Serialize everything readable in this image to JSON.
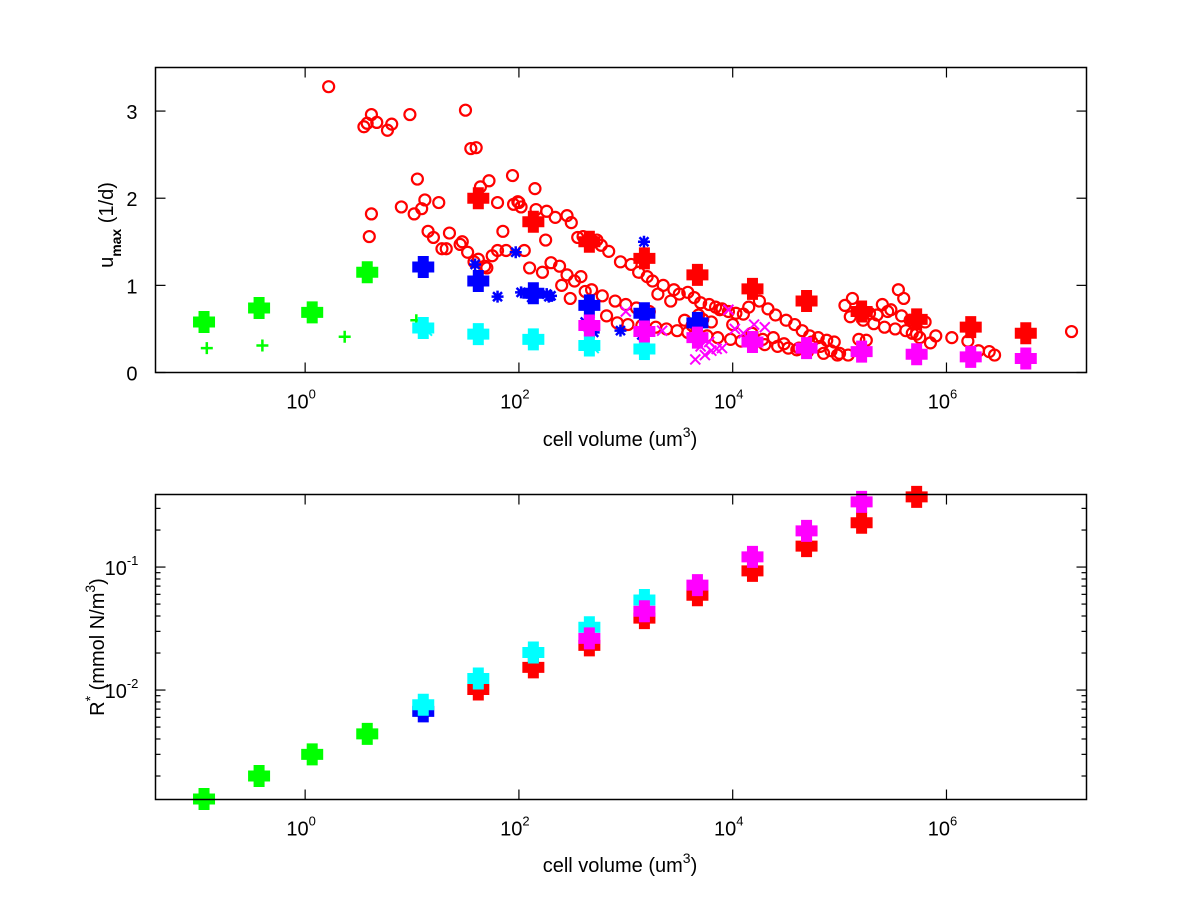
{
  "chart_data": [
    {
      "type": "scatter",
      "panel": "top",
      "title": "",
      "xlabel": "cell volume (um3)",
      "xlabel_parts": {
        "main": "cell volume (um",
        "sup": "3",
        "end": ")"
      },
      "ylabel": "u_max (1/d)",
      "ylabel_parts": {
        "main": "u",
        "sub": "max",
        "end": " (1/d)"
      },
      "xscale": "log",
      "yscale": "linear",
      "xlim_log10": [
        -1.4,
        7.31
      ],
      "ylim": [
        0,
        3.5
      ],
      "xticks": [
        {
          "exp": "0",
          "value": 1
        },
        {
          "exp": "2",
          "value": 100
        },
        {
          "exp": "4",
          "value": 10000
        },
        {
          "exp": "6",
          "value": 1000000
        }
      ],
      "yticks": [
        0,
        1,
        2,
        3
      ],
      "grid": false,
      "legend": "none",
      "series": [
        {
          "name": "observations-red",
          "color": "#ff0000",
          "marker": "circle",
          "x_log10": [
            0.22,
            0.55,
            0.58,
            0.62,
            0.67,
            0.77,
            0.81,
            0.98,
            1.5,
            1.55,
            1.6,
            1.64,
            1.72,
            1.8,
            1.94,
            1.99,
            2.02,
            2.15,
            2.16,
            2.26,
            2.34,
            2.45,
            2.49,
            2.55,
            2.6,
            2.7,
            2.73,
            2.77,
            2.84,
            2.95,
            3.05,
            3.12,
            3.2,
            3.25,
            3.35,
            3.45,
            3.5,
            3.58,
            3.64,
            3.7,
            3.78,
            3.84,
            3.9,
            3.96,
            4.03,
            4.1,
            4.15,
            4.25,
            4.33,
            4.4,
            4.5,
            4.58,
            4.65,
            4.72,
            4.8,
            4.88,
            4.95,
            5.05,
            5.12,
            5.2,
            5.28,
            5.35,
            5.45,
            5.55,
            5.6,
            5.68,
            5.75,
            5.85,
            6.3,
            6.45,
            7.17,
            0.62,
            0.6,
            0.9,
            1.05,
            1.12,
            1.35,
            1.2,
            1.28,
            1.47,
            1.58,
            1.7,
            1.8,
            1.85,
            1.95,
            2.05,
            2.25,
            2.38,
            2.45,
            2.52,
            2.62,
            2.78,
            2.9,
            3.0,
            3.1,
            3.22,
            3.3,
            3.42,
            3.55,
            3.62,
            3.68,
            3.72,
            3.8,
            3.88,
            4.0,
            4.18,
            4.28,
            4.38,
            4.48,
            4.62,
            4.74,
            4.82,
            4.92,
            5.0,
            5.08,
            5.18,
            5.25,
            5.4,
            5.48,
            5.58,
            5.66,
            5.8,
            6.4,
            1.02,
            1.09,
            1.15,
            1.25,
            1.32,
            1.45,
            1.52,
            1.62,
            1.68,
            1.75,
            1.88,
            2.0,
            2.1,
            2.22,
            2.3,
            2.4,
            2.48,
            2.58,
            2.68,
            2.82,
            2.92,
            3.02,
            3.15,
            3.28,
            3.38,
            3.48,
            3.58,
            3.65,
            3.76,
            3.86,
            3.98,
            4.08,
            4.2,
            4.3,
            4.42,
            4.52,
            4.6,
            4.7,
            4.85,
            4.98,
            5.1,
            5.22,
            5.32,
            5.42,
            5.52,
            5.62,
            5.72,
            5.9,
            6.05,
            6.2
          ],
          "y": [
            3.28,
            2.82,
            2.86,
            2.96,
            2.87,
            2.78,
            2.85,
            2.96,
            3.01,
            2.57,
            2.58,
            2.13,
            2.2,
            1.95,
            2.26,
            1.96,
            1.9,
            2.11,
            1.87,
            1.85,
            1.78,
            1.8,
            1.72,
            1.55,
            1.56,
            1.5,
            1.52,
            1.46,
            1.39,
            1.27,
            1.24,
            1.15,
            1.1,
            1.05,
            1.0,
            0.95,
            0.9,
            0.92,
            0.86,
            0.8,
            0.78,
            0.75,
            0.73,
            0.7,
            0.68,
            0.67,
            0.75,
            0.82,
            0.73,
            0.66,
            0.6,
            0.55,
            0.48,
            0.42,
            0.4,
            0.37,
            0.35,
            0.77,
            0.85,
            0.72,
            0.68,
            0.66,
            0.7,
            0.95,
            0.85,
            0.45,
            0.4,
            0.34,
            0.25,
            0.2,
            0.47,
            1.82,
            1.56,
            1.9,
            2.22,
            1.98,
            1.6,
            1.55,
            1.42,
            1.5,
            1.27,
            1.2,
            1.4,
            1.62,
            1.93,
            1.4,
            1.52,
            1.22,
            1.12,
            1.05,
            0.93,
            0.88,
            0.82,
            0.78,
            0.74,
            0.7,
            0.9,
            0.82,
            0.6,
            0.54,
            0.66,
            0.61,
            0.58,
            0.72,
            0.55,
            0.45,
            0.38,
            0.4,
            0.33,
            0.28,
            0.35,
            0.3,
            0.25,
            0.22,
            0.2,
            0.38,
            0.37,
            0.78,
            0.72,
            0.65,
            0.6,
            0.58,
            0.24,
            1.82,
            1.88,
            1.62,
            1.95,
            1.42,
            1.47,
            1.38,
            1.3,
            1.22,
            1.34,
            1.4,
            1.95,
            1.2,
            1.15,
            1.26,
            1.0,
            0.85,
            1.1,
            0.95,
            0.65,
            0.57,
            0.55,
            0.54,
            0.52,
            0.5,
            0.48,
            0.46,
            0.44,
            0.42,
            0.4,
            0.38,
            0.36,
            0.34,
            0.32,
            0.3,
            0.28,
            0.26,
            0.24,
            0.22,
            0.2,
            0.64,
            0.6,
            0.56,
            0.52,
            0.5,
            0.48,
            0.44,
            0.42,
            0.4,
            0.36
          ]
        },
        {
          "name": "observations-blue",
          "color": "#0000ff",
          "marker": "asterisk",
          "x_log10": [
            1.59,
            1.97,
            2.02,
            2.28,
            2.12,
            2.3,
            2.62,
            2.65,
            2.7,
            3.17,
            1.8,
            2.26,
            2.95,
            3.15
          ],
          "y": [
            1.24,
            1.38,
            0.92,
            0.87,
            0.86,
            0.88,
            0.58,
            0.52,
            0.46,
            1.5,
            0.87,
            0.9,
            0.48,
            0.43
          ]
        },
        {
          "name": "observations-magenta",
          "color": "#ff00ff",
          "marker": "x",
          "x_log10": [
            3.0,
            2.66,
            3.34,
            3.65,
            3.74,
            3.8,
            3.85,
            3.9,
            3.96,
            4.02,
            4.1,
            4.2,
            4.3,
            3.7,
            3.78
          ],
          "y": [
            0.7,
            0.68,
            0.48,
            0.15,
            0.2,
            0.25,
            0.27,
            0.28,
            0.72,
            0.5,
            0.45,
            0.55,
            0.52,
            0.3,
            0.35
          ]
        },
        {
          "name": "observations-green",
          "color": "#00ff00",
          "marker": "plus",
          "x_log10": [
            -0.92,
            -0.4,
            0.37,
            1.04
          ],
          "y": [
            0.28,
            0.31,
            0.41,
            0.6
          ]
        },
        {
          "name": "observations-cyan",
          "color": "#00ffff",
          "marker": "x",
          "x_log10": [
            1.14,
            2.7
          ],
          "y": [
            0.48,
            0.28
          ]
        },
        {
          "name": "model-green",
          "color": "#00ff00",
          "marker": "bigplus",
          "x_log10": [
            -0.946,
            -0.431,
            0.066,
            0.581
          ],
          "y": [
            0.58,
            0.74,
            0.69,
            1.15
          ]
        },
        {
          "name": "model-blue",
          "color": "#0000ff",
          "marker": "bigplus",
          "x_log10": [
            1.105,
            1.62,
            2.135,
            2.659,
            3.174,
            3.67
          ],
          "y": [
            1.21,
            1.05,
            0.91,
            0.77,
            0.68,
            0.57
          ]
        },
        {
          "name": "model-cyan",
          "color": "#00ffff",
          "marker": "bigplus",
          "x_log10": [
            1.105,
            1.62,
            2.135,
            2.659,
            3.174
          ],
          "y": [
            0.51,
            0.44,
            0.38,
            0.31,
            0.27
          ]
        },
        {
          "name": "model-red",
          "color": "#ff0000",
          "marker": "bigplus",
          "x_log10": [
            1.62,
            2.135,
            2.659,
            3.174,
            3.67,
            4.185,
            4.691,
            5.206,
            5.721,
            6.227,
            6.742
          ],
          "y": [
            2.0,
            1.73,
            1.5,
            1.31,
            1.12,
            0.96,
            0.82,
            0.7,
            0.61,
            0.52,
            0.45
          ]
        },
        {
          "name": "model-magenta",
          "color": "#ff00ff",
          "marker": "bigplus",
          "x_log10": [
            2.659,
            3.174,
            3.67,
            4.185,
            4.691,
            5.206,
            5.721,
            6.227,
            6.742
          ],
          "y": [
            0.54,
            0.47,
            0.4,
            0.35,
            0.28,
            0.24,
            0.21,
            0.18,
            0.16
          ]
        }
      ]
    },
    {
      "type": "scatter",
      "panel": "bottom",
      "title": "",
      "xlabel": "cell volume (um3)",
      "xlabel_parts": {
        "main": "cell volume (um",
        "sup": "3",
        "end": ")"
      },
      "ylabel": "R* (mmol N/m3)",
      "ylabel_parts": {
        "main": "R",
        "sup1": "*",
        "mid": " (mmol N/m",
        "sup2": "3",
        "end": ")"
      },
      "xscale": "log",
      "yscale": "log",
      "xlim_log10": [
        -1.4,
        7.31
      ],
      "ylim_log10": [
        -2.89,
        -0.41
      ],
      "xticks": [
        {
          "exp": "0",
          "value": 1
        },
        {
          "exp": "2",
          "value": 100
        },
        {
          "exp": "4",
          "value": 10000
        },
        {
          "exp": "6",
          "value": 1000000
        }
      ],
      "yticks": [
        {
          "exp": "-2",
          "value": 0.01
        },
        {
          "exp": "-1",
          "value": 0.1
        }
      ],
      "grid": false,
      "legend": "none",
      "series": [
        {
          "name": "model-green",
          "color": "#00ff00",
          "marker": "bigplus",
          "x_log10": [
            -0.946,
            -0.431,
            0.066,
            0.581
          ],
          "y": [
            0.0013,
            0.002,
            0.003,
            0.0044
          ]
        },
        {
          "name": "model-blue",
          "color": "#0000ff",
          "marker": "bigplus",
          "x_log10": [
            1.105
          ],
          "y": [
            0.0067
          ]
        },
        {
          "name": "model-red",
          "color": "#ff0000",
          "marker": "bigplus",
          "x_log10": [
            1.62,
            2.135,
            2.659,
            3.174,
            3.67,
            4.185,
            4.691,
            5.206,
            5.721
          ],
          "y": [
            0.0101,
            0.0153,
            0.0231,
            0.0384,
            0.059,
            0.093,
            0.148,
            0.229,
            0.372
          ]
        },
        {
          "name": "model-cyan",
          "color": "#00ffff",
          "marker": "bigplus",
          "x_log10": [
            1.105,
            1.62,
            2.135,
            2.659,
            3.174
          ],
          "y": [
            0.0076,
            0.0124,
            0.0202,
            0.0324,
            0.054
          ]
        },
        {
          "name": "model-magenta",
          "color": "#ff00ff",
          "marker": "bigplus",
          "x_log10": [
            2.659,
            3.174,
            3.67,
            4.185,
            4.691,
            5.206
          ],
          "y": [
            0.0263,
            0.0437,
            0.0713,
            0.121,
            0.197,
            0.339
          ]
        }
      ]
    }
  ]
}
